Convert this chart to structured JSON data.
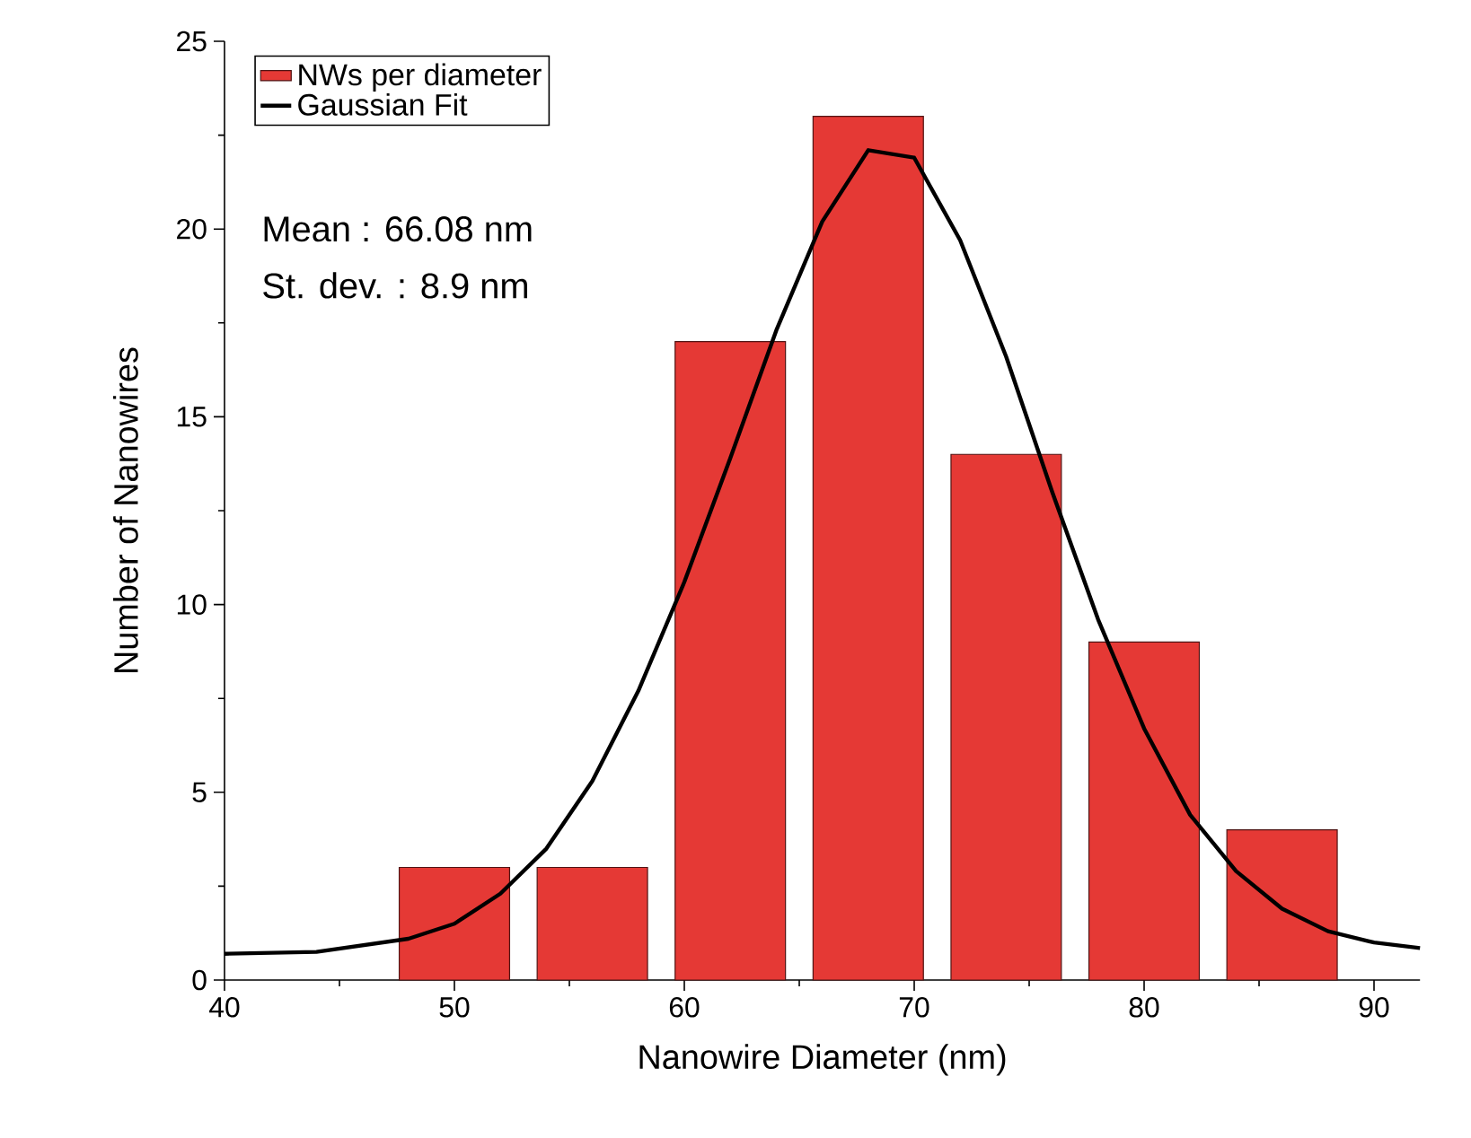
{
  "chart_data": {
    "type": "bar",
    "xlabel": "Nanowire Diameter (nm)",
    "ylabel": "Number of Nanowires",
    "xlim": [
      40,
      92
    ],
    "xticks": [
      40,
      50,
      60,
      70,
      80,
      90
    ],
    "ylim": [
      0,
      25
    ],
    "yticks": [
      0,
      5,
      10,
      15,
      20,
      25
    ],
    "legend": "top left",
    "annotations": [
      "Mean :    66.08 nm",
      "St. dev. :  8.9 nm"
    ],
    "series": [
      {
        "name": "NWs per diameter",
        "color": "#e53935",
        "x": [
          50,
          56,
          62,
          68,
          74,
          80,
          86
        ],
        "values": [
          3,
          3,
          17,
          23,
          14,
          9,
          4
        ]
      },
      {
        "name": "Gaussian Fit",
        "type": "line",
        "color": "#000000",
        "x": [
          40,
          44,
          48,
          50,
          52,
          54,
          56,
          58,
          60,
          62,
          64,
          66,
          68,
          70,
          72,
          74,
          76,
          78,
          80,
          82,
          84,
          86,
          88,
          90,
          92
        ],
        "values": [
          0.7,
          0.75,
          1.1,
          1.5,
          2.3,
          3.5,
          5.3,
          7.7,
          10.6,
          13.9,
          17.3,
          20.2,
          22.1,
          21.9,
          19.7,
          16.6,
          13.0,
          9.6,
          6.7,
          4.4,
          2.9,
          1.9,
          1.3,
          1.0,
          0.85
        ]
      }
    ]
  }
}
